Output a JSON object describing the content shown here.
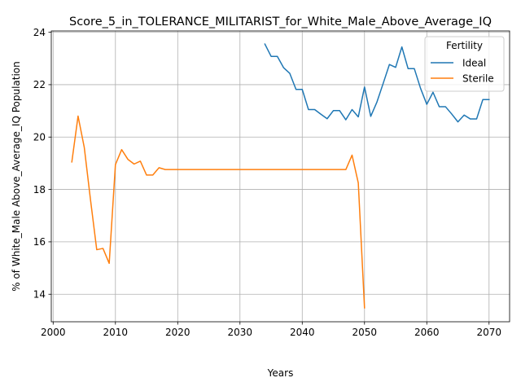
{
  "chart_data": {
    "type": "line",
    "title": "Score_5_in_TOLERANCE_MILITARIST_for_White_Male_Above_Average_IQ",
    "xlabel": "Years",
    "ylabel": "% of White_Male Above_Average_IQ Population",
    "xlim": [
      1999.7,
      2073.3
    ],
    "ylim": [
      12.95,
      24.05
    ],
    "xticks": [
      2000,
      2010,
      2020,
      2030,
      2040,
      2050,
      2060,
      2070
    ],
    "yticks": [
      14,
      16,
      18,
      20,
      22,
      24
    ],
    "grid": true,
    "legend": {
      "title": "Fertility",
      "placement": "top-right"
    },
    "series": [
      {
        "name": "Ideal",
        "color": "#1f77b4",
        "x": [
          2034,
          2035,
          2036,
          2037,
          2038,
          2039,
          2040,
          2041,
          2042,
          2043,
          2044,
          2045,
          2046,
          2047,
          2048,
          2049,
          2050,
          2051,
          2052,
          2053,
          2054,
          2055,
          2056,
          2057,
          2058,
          2059,
          2060,
          2061,
          2062,
          2063,
          2064,
          2065,
          2066,
          2067,
          2068,
          2069,
          2070
        ],
        "values": [
          23.55,
          23.08,
          23.08,
          22.65,
          22.43,
          21.82,
          21.82,
          21.05,
          21.05,
          20.87,
          20.7,
          21.01,
          21.01,
          20.66,
          21.05,
          20.77,
          21.91,
          20.79,
          21.34,
          22.05,
          22.77,
          22.66,
          23.44,
          22.61,
          22.61,
          21.86,
          21.25,
          21.71,
          21.16,
          21.16,
          20.88,
          20.58,
          20.84,
          20.69,
          20.69,
          21.43,
          21.43
        ]
      },
      {
        "name": "Sterile",
        "color": "#ff7f0e",
        "x": [
          2003,
          2004,
          2005,
          2006,
          2007,
          2008,
          2009,
          2010,
          2011,
          2012,
          2013,
          2014,
          2015,
          2016,
          2017,
          2018,
          2019,
          2020,
          2021,
          2022,
          2023,
          2024,
          2025,
          2026,
          2027,
          2028,
          2029,
          2030,
          2031,
          2032,
          2033,
          2034,
          2035,
          2036,
          2037,
          2038,
          2039,
          2040,
          2041,
          2042,
          2043,
          2044,
          2045,
          2046,
          2047,
          2048,
          2049,
          2050
        ],
        "values": [
          19.05,
          20.8,
          19.6,
          17.6,
          15.7,
          15.75,
          15.18,
          18.95,
          19.52,
          19.15,
          18.97,
          19.08,
          18.55,
          18.55,
          18.83,
          18.76,
          18.76,
          18.76,
          18.76,
          18.76,
          18.76,
          18.76,
          18.76,
          18.76,
          18.76,
          18.76,
          18.76,
          18.76,
          18.76,
          18.76,
          18.76,
          18.76,
          18.76,
          18.76,
          18.76,
          18.76,
          18.76,
          18.76,
          18.76,
          18.76,
          18.76,
          18.76,
          18.76,
          18.76,
          18.76,
          19.31,
          18.25,
          13.48
        ]
      }
    ]
  }
}
